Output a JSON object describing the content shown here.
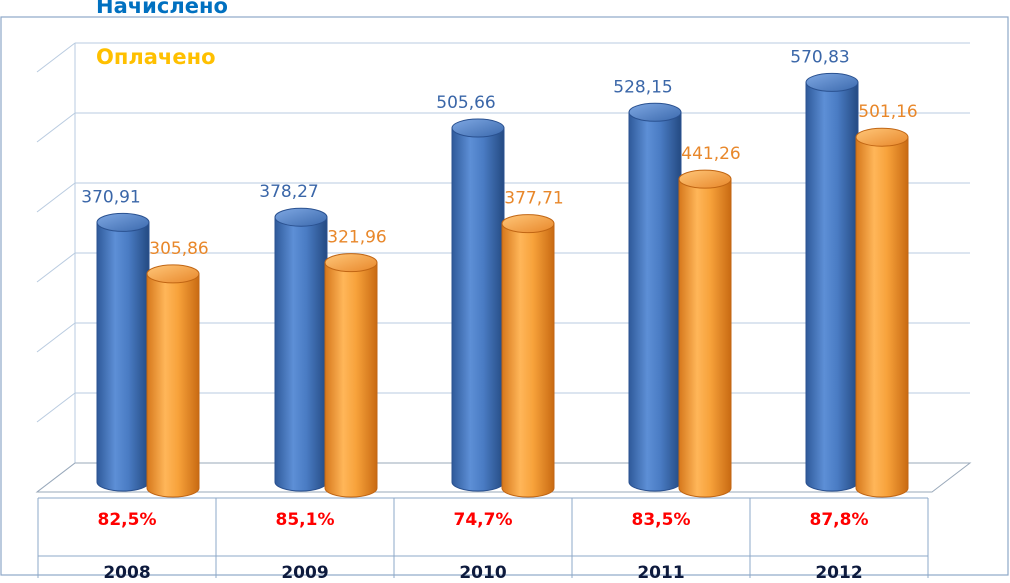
{
  "chart_data": {
    "type": "bar",
    "categories": [
      "2008",
      "2009",
      "2010",
      "2011",
      "2012"
    ],
    "series": [
      {
        "name": "Начислено",
        "values": [
          370.91,
          378.27,
          505.66,
          528.15,
          570.83
        ],
        "labels": [
          "370,91",
          "378,27",
          "505,66",
          "528,15",
          "570,83"
        ]
      },
      {
        "name": "Оплачено",
        "values": [
          305.86,
          321.96,
          377.71,
          441.26,
          501.16
        ],
        "labels": [
          "305,86",
          "321,96",
          "377,71",
          "441,26",
          "501,16"
        ]
      }
    ],
    "percentages": [
      "82,5%",
      "85,1%",
      "74,7%",
      "83,5%",
      "87,8%"
    ],
    "ylim": [
      0,
      600
    ],
    "grid": true,
    "legend_position": "top-left"
  },
  "colors": {
    "accrued": "#4a7cc4",
    "paid": "#f7a23b",
    "accrued_text": "#0070c0",
    "paid_text": "#ffc000",
    "accrued_label": "#3a66a8",
    "paid_label": "#e8872a",
    "percent_text": "#ff0000",
    "year_text": "#0d1a3d"
  }
}
